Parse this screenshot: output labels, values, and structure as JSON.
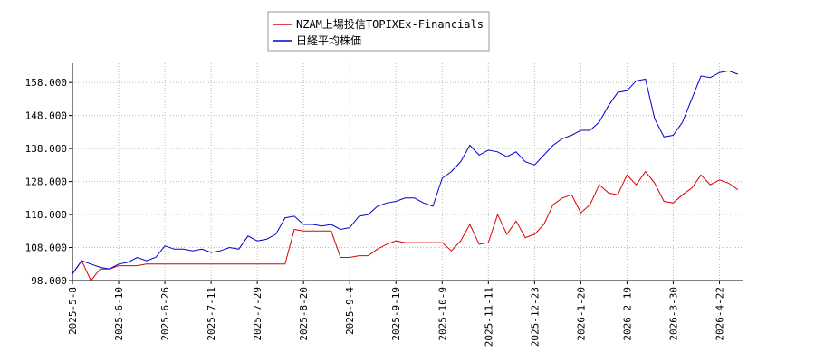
{
  "chart_data": {
    "type": "line",
    "categories": [
      "2025-5-8",
      null,
      null,
      null,
      null,
      "2025-6-10",
      null,
      null,
      null,
      null,
      "2025-6-26",
      null,
      null,
      null,
      null,
      "2025-7-11",
      null,
      null,
      null,
      null,
      "2025-7-29",
      null,
      null,
      null,
      null,
      "2025-8-20",
      null,
      null,
      null,
      null,
      "2025-9-4",
      null,
      null,
      null,
      null,
      "2025-9-19",
      null,
      null,
      null,
      null,
      "2025-10-9",
      null,
      null,
      null,
      null,
      "2025-11-11",
      null,
      null,
      null,
      null,
      "2025-12-23",
      null,
      null,
      null,
      null,
      "2026-1-20",
      null,
      null,
      null,
      null,
      "2026-2-19",
      null,
      null,
      null,
      null,
      "2026-3-30",
      null,
      null,
      null,
      null,
      "2026-4-22",
      null,
      null
    ],
    "series": [
      {
        "name": "NZAM上場投信TOPIXEx-Financials",
        "color": "#dd0000",
        "values": [
          100,
          104,
          98,
          101.5,
          101.5,
          102.5,
          102.5,
          102.5,
          103,
          103,
          103,
          103,
          103,
          103,
          103,
          103,
          103,
          103,
          103,
          103,
          103,
          103,
          103,
          103,
          113.5,
          113,
          113,
          113,
          113,
          105,
          105,
          105.5,
          105.5,
          107.5,
          109,
          110,
          109.5,
          109.5,
          109.5,
          109.5,
          109.5,
          107,
          110,
          115,
          109,
          109.5,
          118,
          112,
          116,
          111,
          112,
          115,
          121,
          123,
          124,
          118.5,
          121,
          127,
          124.5,
          124,
          130,
          127,
          131,
          127.5,
          122,
          121.5,
          124,
          126,
          130,
          127,
          128.5,
          127.5,
          125.5
        ]
      },
      {
        "name": "日経平均株価",
        "color": "#0000cc",
        "values": [
          100,
          104,
          103,
          102,
          101.5,
          103,
          103.5,
          105,
          104,
          105,
          108.5,
          107.5,
          107.5,
          107,
          107.5,
          106.5,
          107,
          108,
          107.5,
          111.5,
          110,
          110.5,
          112,
          117,
          117.5,
          115,
          115,
          114.5,
          115,
          113.5,
          114,
          117.5,
          118,
          120.5,
          121.5,
          122,
          123,
          123,
          121.5,
          120.5,
          129,
          131,
          134,
          139,
          136,
          137.5,
          137,
          135.5,
          137,
          134,
          133,
          136,
          139,
          141,
          142,
          143.5,
          143.5,
          146,
          151,
          155,
          155.5,
          158.5,
          159,
          147,
          141.5,
          142,
          146,
          153,
          160,
          159.5,
          161,
          161.5,
          160.5
        ]
      }
    ],
    "ylim": [
      98,
      163.8
    ],
    "yticks": [
      {
        "value": 98,
        "label": "98.000"
      },
      {
        "value": 108,
        "label": "108.000"
      },
      {
        "value": 118,
        "label": "118.000"
      },
      {
        "value": 128,
        "label": "128.000"
      },
      {
        "value": 138,
        "label": "138.000"
      },
      {
        "value": 148,
        "label": "148.000"
      },
      {
        "value": 158,
        "label": "158.000"
      }
    ],
    "grid": true
  }
}
